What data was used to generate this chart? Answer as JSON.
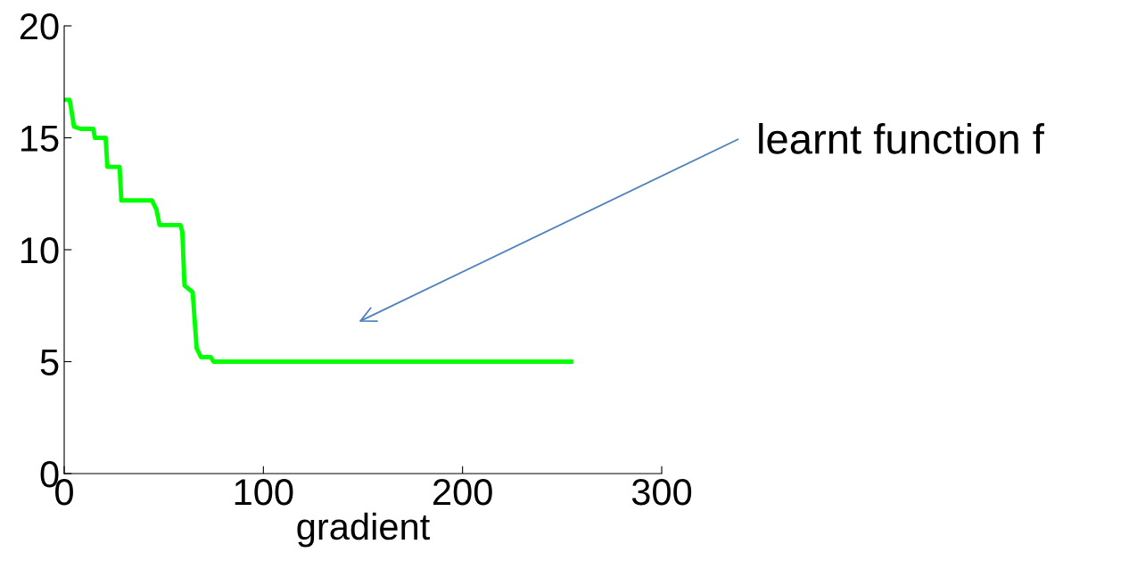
{
  "chart_data": {
    "type": "line",
    "xlabel": "gradient",
    "xlim": [
      0,
      300
    ],
    "xticks": [
      0,
      100,
      200,
      300
    ],
    "ylim": [
      0,
      20
    ],
    "yticks": [
      0,
      5,
      10,
      15,
      20
    ],
    "grid": false,
    "legend": false,
    "marker": "none",
    "line_style": "solid",
    "series": [
      {
        "color": "#00ff00",
        "x": [
          0,
          2.7,
          3.5,
          4.9,
          8.3,
          14.6,
          15.4,
          20.8,
          21.7,
          27.8,
          28.7,
          44.1,
          46.3,
          47.9,
          58.4,
          59.3,
          60.4,
          64.5,
          66.5,
          68.7,
          73.6,
          75,
          254.5
        ],
        "values": [
          16.7,
          16.7,
          16.3,
          15.5,
          15.4,
          15.4,
          15.0,
          15.0,
          13.7,
          13.7,
          12.2,
          12.2,
          11.8,
          11.1,
          11.1,
          10.8,
          8.4,
          8.1,
          5.6,
          5.2,
          5.2,
          5.0,
          5.0
        ]
      }
    ],
    "annotations": [
      "learnt function f"
    ]
  }
}
